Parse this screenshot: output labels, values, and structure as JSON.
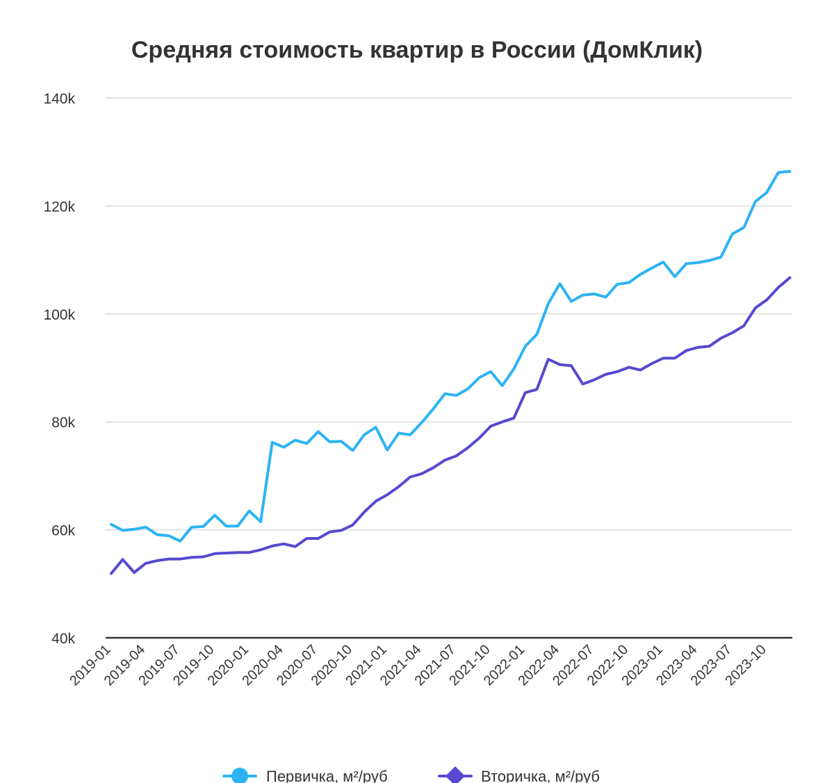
{
  "chart_data": {
    "type": "line",
    "title": "Средняя стоимость квартир в России (ДомКлик)",
    "xlabel": "",
    "ylabel": "",
    "ylim": [
      40000,
      140000
    ],
    "y_ticks": [
      40000,
      60000,
      80000,
      100000,
      120000,
      140000
    ],
    "y_tick_labels": [
      "40k",
      "60k",
      "80k",
      "100k",
      "120k",
      "140k"
    ],
    "x_tick_labels": [
      "2019-01",
      "2019-04",
      "2019-07",
      "2019-10",
      "2020-01",
      "2020-04",
      "2020-07",
      "2020-10",
      "2021-01",
      "2021-04",
      "2021-07",
      "2021-10",
      "2022-01",
      "2022-04",
      "2022-07",
      "2022-10",
      "2023-01",
      "2023-04",
      "2023-07",
      "2023-10"
    ],
    "x_start": "2019-01",
    "x": [
      "2019-01",
      "2019-02",
      "2019-03",
      "2019-04",
      "2019-05",
      "2019-06",
      "2019-07",
      "2019-08",
      "2019-09",
      "2019-10",
      "2019-11",
      "2019-12",
      "2020-01",
      "2020-02",
      "2020-03",
      "2020-04",
      "2020-05",
      "2020-06",
      "2020-07",
      "2020-08",
      "2020-09",
      "2020-10",
      "2020-11",
      "2020-12",
      "2021-01",
      "2021-02",
      "2021-03",
      "2021-04",
      "2021-05",
      "2021-06",
      "2021-07",
      "2021-08",
      "2021-09",
      "2021-10",
      "2021-11",
      "2021-12",
      "2022-01",
      "2022-02",
      "2022-03",
      "2022-04",
      "2022-05",
      "2022-06",
      "2022-07",
      "2022-08",
      "2022-09",
      "2022-10",
      "2022-11",
      "2022-12",
      "2023-01",
      "2023-02",
      "2023-03",
      "2023-04",
      "2023-05",
      "2023-06",
      "2023-07",
      "2023-08",
      "2023-09",
      "2023-10",
      "2023-11",
      "2023-12"
    ],
    "grid": true,
    "legend": "bottom",
    "series": [
      {
        "name": "Первичка, м²/руб",
        "color": "#2db3f5",
        "marker": "circle",
        "values": [
          61000,
          59900,
          60100,
          60500,
          59100,
          58900,
          57900,
          60500,
          60600,
          62700,
          60700,
          60700,
          63500,
          61500,
          76200,
          75300,
          76600,
          76000,
          78200,
          76300,
          76400,
          74700,
          77600,
          79000,
          74800,
          77900,
          77600,
          79900,
          82400,
          85200,
          84900,
          86100,
          88200,
          89300,
          86700,
          89800,
          94000,
          96200,
          101900,
          105600,
          102300,
          103500,
          103700,
          103100,
          105500,
          105800,
          107300,
          108500,
          109600,
          106900,
          109300,
          109500,
          109900,
          110500,
          114800,
          116000,
          120800,
          122500,
          126200,
          126400
        ]
      },
      {
        "name": "Вторичка, м²/руб",
        "color": "#5749d0",
        "marker": "diamond",
        "values": [
          51900,
          54500,
          52100,
          53800,
          54300,
          54600,
          54600,
          54900,
          55000,
          55600,
          55700,
          55800,
          55800,
          56300,
          57000,
          57400,
          56900,
          58400,
          58400,
          59600,
          59900,
          60900,
          63300,
          65300,
          66500,
          68000,
          69800,
          70400,
          71500,
          72900,
          73700,
          75200,
          77000,
          79200,
          80000,
          80700,
          85400,
          86000,
          91600,
          90600,
          90400,
          87000,
          87800,
          88800,
          89300,
          90100,
          89600,
          90800,
          91800,
          91800,
          93200,
          93800,
          94000,
          95500,
          96500,
          97800,
          101100,
          102600,
          104900,
          106700
        ]
      }
    ]
  }
}
